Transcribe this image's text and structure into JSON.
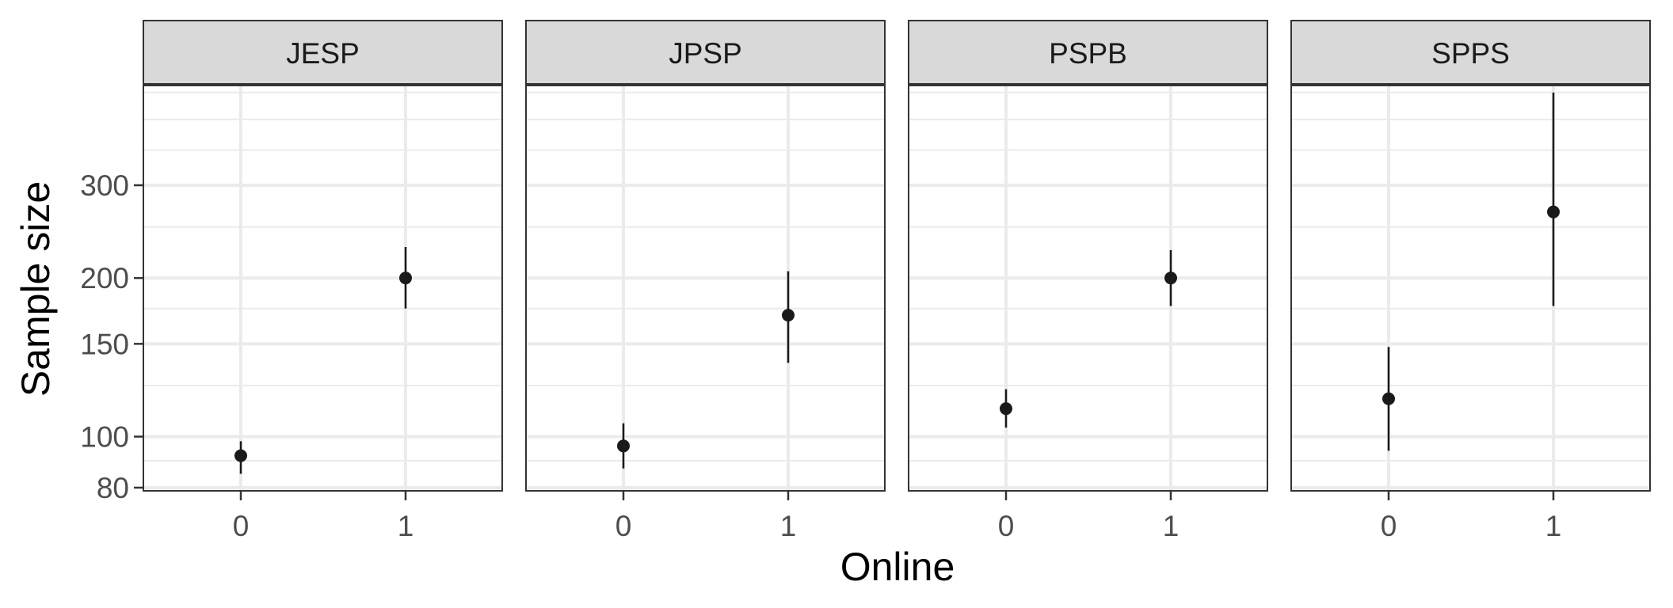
{
  "chart_data": {
    "type": "scatter",
    "subtype": "point-range, faceted",
    "xlabel": "Online",
    "ylabel": "Sample size",
    "y_scale": "log",
    "ylim": [
      78,
      540
    ],
    "y_ticks": [
      80,
      100,
      150,
      200,
      300
    ],
    "y_tick_labels": [
      "80",
      "100",
      "150",
      "200",
      "300"
    ],
    "y_minor_ticks": [
      90,
      125,
      175,
      250,
      350,
      400,
      450
    ],
    "x_categories": [
      "0",
      "1"
    ],
    "grid": true,
    "legend": "none",
    "colors": {
      "point": "#1a1a1a",
      "strip": "#d9d9d9",
      "grid": "#ebebeb",
      "panel_border": "#333333",
      "text": "#4d4d4d"
    },
    "facets": [
      {
        "label": "JESP",
        "points": [
          {
            "x": "0",
            "y": 92,
            "ymin": 85,
            "ymax": 98
          },
          {
            "x": "1",
            "y": 200,
            "ymin": 175,
            "ymax": 229
          }
        ]
      },
      {
        "label": "JPSP",
        "points": [
          {
            "x": "0",
            "y": 96,
            "ymin": 87,
            "ymax": 106
          },
          {
            "x": "1",
            "y": 170,
            "ymin": 138,
            "ymax": 206
          }
        ]
      },
      {
        "label": "PSPB",
        "points": [
          {
            "x": "0",
            "y": 113,
            "ymin": 104,
            "ymax": 123
          },
          {
            "x": "1",
            "y": 200,
            "ymin": 177,
            "ymax": 226
          }
        ]
      },
      {
        "label": "SPPS",
        "points": [
          {
            "x": "0",
            "y": 118,
            "ymin": 94,
            "ymax": 148
          },
          {
            "x": "1",
            "y": 267,
            "ymin": 177,
            "ymax": 450
          }
        ]
      }
    ]
  }
}
